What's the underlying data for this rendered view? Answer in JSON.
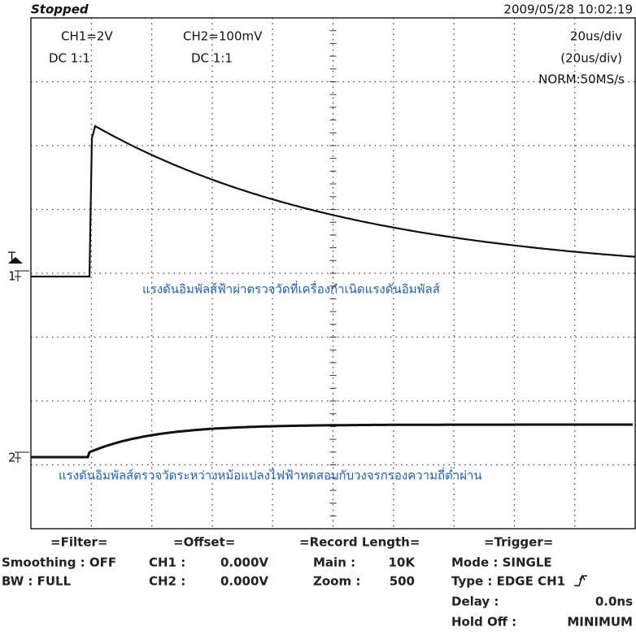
{
  "header": {
    "status": "Stopped",
    "datetime": "2009/05/28  10:02:19"
  },
  "channels": [
    {
      "scale": "CH1=2V",
      "coupling": "DC  1:1"
    },
    {
      "scale": "CH2=100mV",
      "coupling": "DC  1:1"
    }
  ],
  "timebase": {
    "main": "20us/div",
    "zoom": "(20us/div)",
    "mode": "NORM:50MS/s"
  },
  "markers": {
    "trigger": "T",
    "ch1": "1",
    "ch2": "2"
  },
  "annotations": [
    "แรงดันอิมพัลส์ฟ้าผ่าตรวจวัดที่เครื่องกำเนิดแรงดันอิมพัลส์",
    "แรงดันอิมพัลส์ตรวจวัดระหว่างหม้อแปลงไฟฟ้าทดสอบกับวงจรกรองความถี่ต่ำผ่าน"
  ],
  "filter": {
    "title": "=Filter=",
    "rows": [
      "Smoothing : OFF",
      "BW : FULL"
    ]
  },
  "offset": {
    "title": "=Offset=",
    "rows": [
      [
        "CH1 :",
        "0.000V"
      ],
      [
        "CH2 :",
        "0.000V"
      ]
    ]
  },
  "record_length": {
    "title": "=Record Length=",
    "rows": [
      [
        "Main :",
        "10K"
      ],
      [
        "Zoom :",
        "500"
      ]
    ]
  },
  "trigger": {
    "title": "=Trigger=",
    "rows": [
      [
        "Mode : SINGLE"
      ],
      [
        "Type : EDGE CH1"
      ],
      [
        "Delay :",
        "0.0ns"
      ],
      [
        "Hold Off :",
        "MINIMUM"
      ]
    ]
  }
}
